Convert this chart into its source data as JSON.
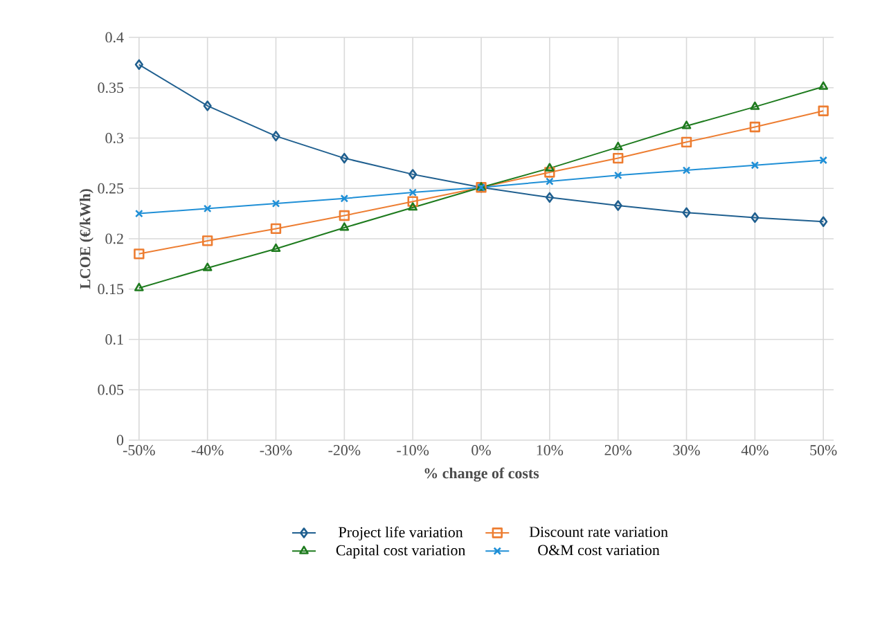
{
  "chart_data": {
    "type": "line",
    "xlabel": "% change of costs",
    "ylabel": "LCOE (€/kWh)",
    "categories": [
      "-50%",
      "-40%",
      "-30%",
      "-20%",
      "-10%",
      "0%",
      "10%",
      "20%",
      "30%",
      "40%",
      "50%"
    ],
    "series": [
      {
        "name": "Project life variation",
        "color": "#1f5f8f",
        "marker": "diamond",
        "values": [
          0.373,
          0.332,
          0.302,
          0.28,
          0.264,
          0.251,
          0.241,
          0.233,
          0.226,
          0.221,
          0.217
        ]
      },
      {
        "name": "Discount rate variation",
        "color": "#ed7d31",
        "marker": "square",
        "values": [
          0.185,
          0.198,
          0.21,
          0.223,
          0.237,
          0.251,
          0.266,
          0.28,
          0.296,
          0.311,
          0.327
        ]
      },
      {
        "name": "Capital cost variation",
        "color": "#1e7b1e",
        "marker": "triangle",
        "values": [
          0.151,
          0.171,
          0.19,
          0.211,
          0.231,
          0.251,
          0.27,
          0.291,
          0.312,
          0.331,
          0.351
        ]
      },
      {
        "name": "O&M cost variation",
        "color": "#1f8fd6",
        "marker": "cross",
        "values": [
          0.225,
          0.23,
          0.235,
          0.24,
          0.246,
          0.251,
          0.257,
          0.263,
          0.268,
          0.273,
          0.278
        ]
      }
    ],
    "ylim": [
      0,
      0.4
    ],
    "yticks": [
      0,
      0.05,
      0.1,
      0.15,
      0.2,
      0.25,
      0.3,
      0.35,
      0.4
    ],
    "grid": true,
    "legend": "bottom",
    "line_style": "solid"
  }
}
